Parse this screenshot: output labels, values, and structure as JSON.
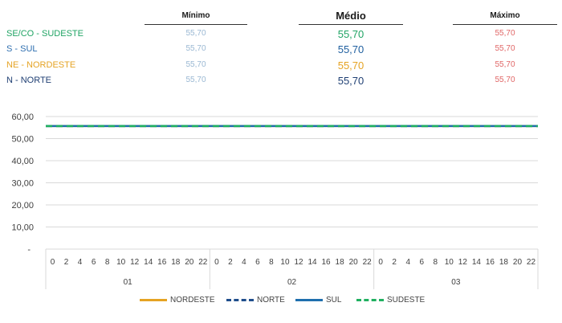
{
  "summary": {
    "headers": {
      "min": "Mínimo",
      "avg": "Médio",
      "max": "Máximo"
    },
    "rows": [
      {
        "label": "SE/CO - SUDESTE",
        "color": "#20a464",
        "min": "55,70",
        "avg": "55,70",
        "max": "55,70",
        "avg_color": "#20a464"
      },
      {
        "label": "S - SUL",
        "color": "#2f6fb0",
        "min": "55,70",
        "avg": "55,70",
        "max": "55,70",
        "avg_color": "#1f5f9f"
      },
      {
        "label": "NE - NORDESTE",
        "color": "#e5a323",
        "min": "55,70",
        "avg": "55,70",
        "max": "55,70",
        "avg_color": "#e5a323"
      },
      {
        "label": "N - NORTE",
        "color": "#1f3f73",
        "min": "55,70",
        "avg": "55,70",
        "max": "55,70",
        "avg_color": "#1f3f73"
      }
    ],
    "min_color": "#9ab8d3",
    "max_color": "#e06666"
  },
  "chart_data": {
    "type": "line",
    "ylim": [
      0,
      60
    ],
    "y_ticks": [
      "-",
      "10,00",
      "20,00",
      "30,00",
      "40,00",
      "50,00",
      "60,00"
    ],
    "hour_labels": [
      "0",
      "2",
      "4",
      "6",
      "8",
      "10",
      "12",
      "14",
      "16",
      "18",
      "20",
      "22"
    ],
    "day_groups": [
      "01",
      "02",
      "03"
    ],
    "series": [
      {
        "name": "NORDESTE",
        "color": "#e5a323",
        "dash": "solid",
        "value": 55.7
      },
      {
        "name": "NORTE",
        "color": "#1f4e8c",
        "dash": "dashed",
        "value": 55.7
      },
      {
        "name": "SUL",
        "color": "#1f6fae",
        "dash": "solid",
        "value": 55.7
      },
      {
        "name": "SUDESTE",
        "color": "#20b060",
        "dash": "dashed",
        "value": 55.7
      }
    ],
    "grid": true
  }
}
